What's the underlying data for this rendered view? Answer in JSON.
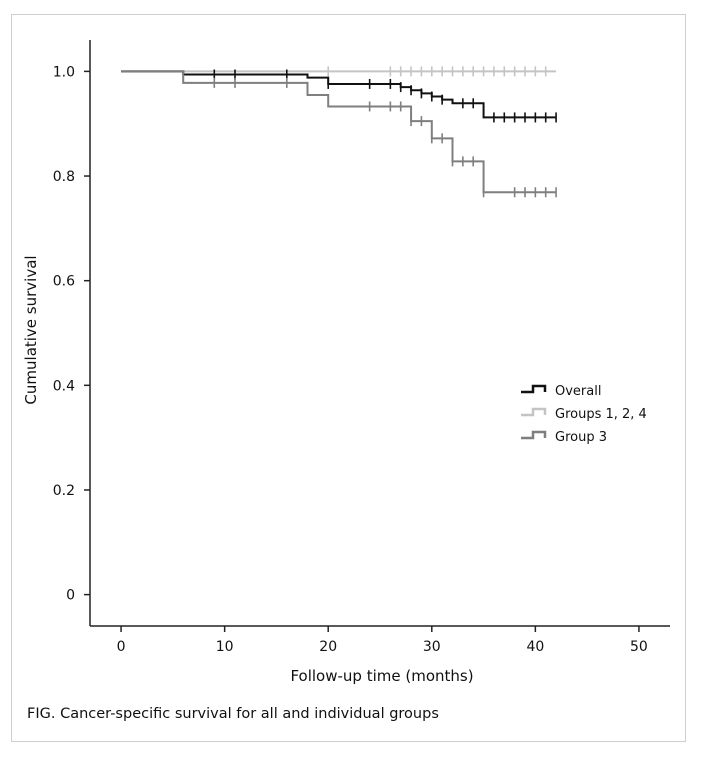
{
  "figure": {
    "caption": "FIG.  Cancer-specific survival for all and individual groups"
  },
  "chart_data": {
    "type": "line",
    "step": true,
    "xlabel": "Follow-up time (months)",
    "ylabel": "Cumulative survival",
    "xlim": [
      -3,
      53
    ],
    "ylim": [
      -0.06,
      1.06
    ],
    "xticks": [
      0,
      10,
      20,
      30,
      40,
      50
    ],
    "xtick_labels": [
      "0",
      "10",
      "20",
      "30",
      "40",
      "50"
    ],
    "yticks": [
      0,
      0.2,
      0.4,
      0.6,
      0.8,
      1.0
    ],
    "ytick_labels": [
      "0",
      "0.2",
      "0.4",
      "0.6",
      "0.8",
      "1.0"
    ],
    "grid": false,
    "legend_position": "right-middle",
    "series": [
      {
        "name": "Groups 1, 2, 4",
        "color": "#c4c4c4",
        "step_x": [
          0,
          42
        ],
        "step_y": [
          1.0,
          1.0
        ],
        "censored_x": [
          20,
          26,
          27,
          28,
          29,
          30,
          31,
          32,
          33,
          34,
          35,
          36,
          37,
          38,
          39,
          40,
          41
        ]
      },
      {
        "name": "Overall",
        "color": "#111111",
        "step_x": [
          0,
          6,
          18,
          20,
          27,
          28,
          29,
          30,
          31,
          32,
          35,
          42
        ],
        "step_y": [
          1.0,
          0.994,
          0.988,
          0.976,
          0.97,
          0.964,
          0.958,
          0.952,
          0.946,
          0.939,
          0.912,
          0.912
        ],
        "censored_x": [
          9,
          11,
          16,
          20,
          24,
          26,
          27,
          28,
          29,
          30,
          31,
          33,
          34,
          36,
          37,
          38,
          39,
          40,
          41,
          42
        ]
      },
      {
        "name": "Group 3",
        "color": "#7f7f7f",
        "step_x": [
          0,
          6,
          18,
          20,
          28,
          30,
          32,
          35,
          42
        ],
        "step_y": [
          1.0,
          0.978,
          0.955,
          0.933,
          0.905,
          0.872,
          0.828,
          0.769,
          0.769
        ],
        "censored_x": [
          9,
          11,
          16,
          24,
          26,
          27,
          28,
          29,
          30,
          31,
          32,
          33,
          34,
          35,
          38,
          39,
          40,
          41,
          42
        ]
      }
    ],
    "legend_order": [
      "Overall",
      "Groups 1, 2, 4",
      "Group 3"
    ]
  }
}
